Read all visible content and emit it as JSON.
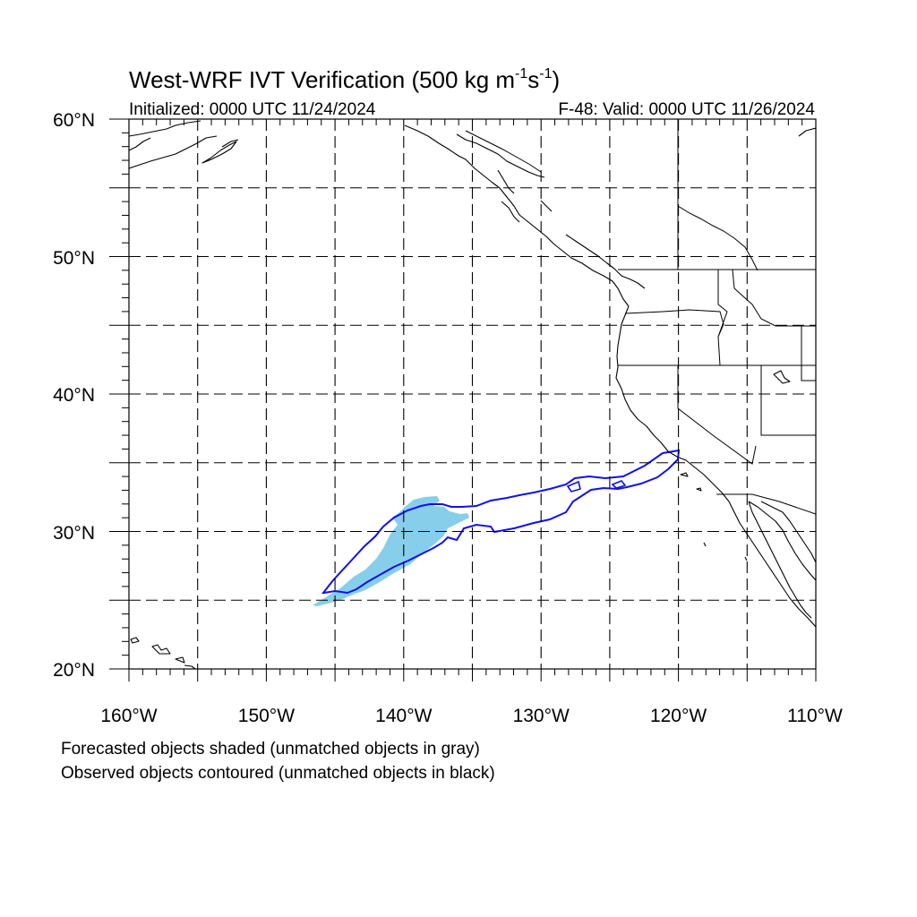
{
  "figure": {
    "title_main": "West-WRF IVT Verification (500 kg m",
    "title_exp1": "-1",
    "title_mid": "s",
    "title_exp2": "-1",
    "title_end": ")",
    "initialized": "Initialized: 0000 UTC 11/24/2024",
    "valid": "F-48: Valid: 0000 UTC 11/26/2024",
    "notes": [
      "Forecasted objects shaded (unmatched objects in gray)",
      "Observed objects contoured (unmatched objects in black)"
    ]
  },
  "axes": {
    "x_ticks": [
      "160°W",
      "150°W",
      "140°W",
      "130°W",
      "120°W",
      "110°W"
    ],
    "y_ticks": [
      "60°N",
      "50°N",
      "40°N",
      "30°N",
      "20°N"
    ],
    "lon_range": [
      -160,
      -110
    ],
    "lat_range": [
      20,
      60
    ],
    "grid": "dashed every 5°"
  },
  "objects": {
    "forecast_color": "#87ceeb",
    "observed_color": "#1010ee",
    "forecast_matched": true,
    "observed_matched": true
  }
}
